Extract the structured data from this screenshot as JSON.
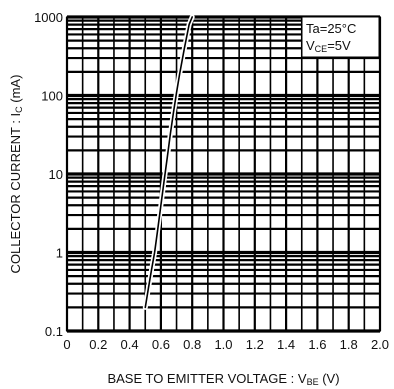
{
  "chart_data": {
    "type": "line",
    "xscale": "linear",
    "yscale": "log",
    "xlim": [
      0,
      2.0
    ],
    "ylim": [
      0.1,
      1000
    ],
    "grid": true,
    "x_ticks": [
      "0",
      "0.2",
      "0.4",
      "0.6",
      "0.8",
      "1.0",
      "1.2",
      "1.4",
      "1.6",
      "1.8",
      "2.0"
    ],
    "x_tick_values": [
      0,
      0.2,
      0.4,
      0.6,
      0.8,
      1.0,
      1.2,
      1.4,
      1.6,
      1.8,
      2.0
    ],
    "y_ticks": [
      "0.1",
      "1",
      "10",
      "100",
      "1000"
    ],
    "y_tick_values": [
      0.1,
      1,
      10,
      100,
      1000
    ],
    "xlabel": {
      "main": "BASE TO EMITTER VOLTAGE : V",
      "sub": "BE",
      "unit": " (V)"
    },
    "ylabel": {
      "main": "COLLECTOR CURRENT : I",
      "sub": "C",
      "unit": " (mA)"
    },
    "legend": {
      "position": "top-right",
      "line1": {
        "main": "Ta=25°C"
      },
      "line2": {
        "main": "V",
        "sub": "CE",
        "rest": "=5V"
      }
    },
    "series": [
      {
        "x": [
          0.5,
          0.52,
          0.54,
          0.56,
          0.58,
          0.6,
          0.62,
          0.64,
          0.66,
          0.68,
          0.7,
          0.72,
          0.75,
          0.78,
          0.8
        ],
        "y": [
          0.2,
          0.35,
          0.6,
          1.0,
          2.0,
          4.0,
          8.0,
          16,
          32,
          60,
          110,
          190,
          400,
          800,
          1000
        ]
      }
    ]
  }
}
